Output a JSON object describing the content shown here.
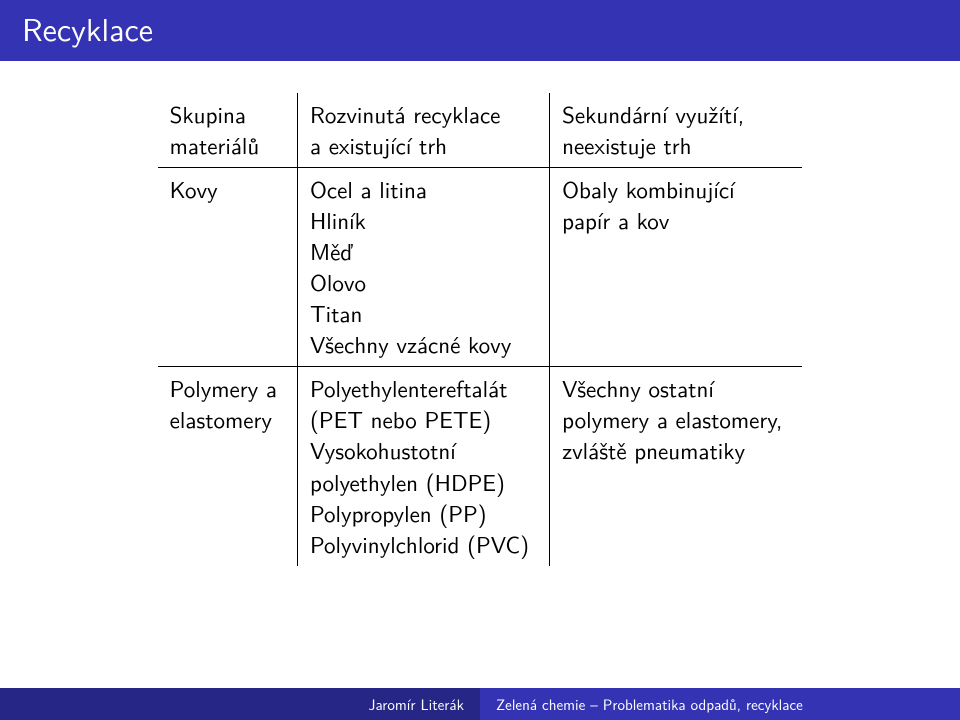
{
  "colors": {
    "title_bg": "#3333b3",
    "title_fg": "#ffffff",
    "footer_left_bg": "#262686",
    "footer_left_fg": "#ffffff",
    "footer_right_bg": "#3333b3",
    "footer_right_fg": "#ffffff",
    "body_bg": "#ffffff",
    "text": "#000000",
    "rule": "#000000"
  },
  "title": "Recyklace",
  "table": {
    "columns": [
      {
        "lines": [
          "Skupina",
          "materiálů"
        ]
      },
      {
        "lines": [
          "Rozvinutá recyklace",
          "a existující trh"
        ]
      },
      {
        "lines": [
          "Sekundární využítí,",
          "neexistuje trh"
        ]
      }
    ],
    "rows": [
      {
        "c1": [
          "Kovy"
        ],
        "c2": [
          "Ocel a litina",
          "Hliník",
          "Měď",
          "Olovo",
          "Titan",
          "Všechny vzácné kovy"
        ],
        "c3": [
          "Obaly kombinující",
          "papír a kov"
        ]
      },
      {
        "c1": [
          "Polymery a",
          "elastomery"
        ],
        "c2": [
          "Polyethylentereftalát",
          "(PET nebo PETE)",
          "Vysokohustotní",
          "polyethylen (HDPE)",
          "Polypropylen (PP)",
          "Polyvinylchlorid (PVC)"
        ],
        "c3": [
          "Všechny ostatní",
          "polymery a elastomery,",
          "zvláště pneumatiky"
        ]
      }
    ]
  },
  "footer": {
    "author": "Jaromír Literák",
    "course": "Zelená chemie – Problematika odpadů, recyklace"
  }
}
